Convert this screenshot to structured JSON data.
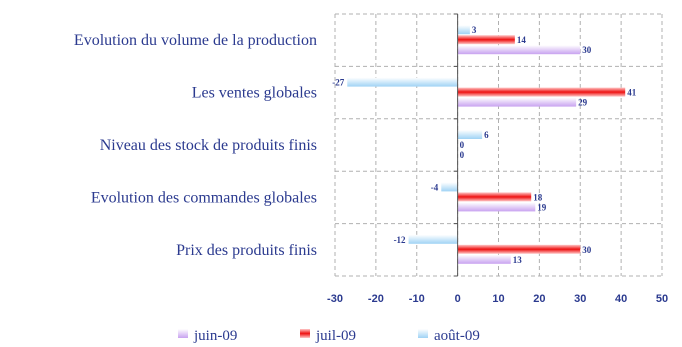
{
  "chart_data": {
    "type": "bar",
    "orientation": "horizontal",
    "categories": [
      "Evolution du volume de la production",
      "Les ventes globales",
      "Niveau des stock de produits finis",
      "Evolution des commandes globales",
      "Prix des produits finis"
    ],
    "series": [
      {
        "name": "juin-09",
        "values": [
          30,
          29,
          0,
          19,
          13
        ],
        "color": "#c8a2f0"
      },
      {
        "name": "juil-09",
        "values": [
          14,
          41,
          0,
          18,
          30
        ],
        "color": "#ee1111"
      },
      {
        "name": "août-09",
        "values": [
          3,
          -27,
          6,
          -4,
          -12
        ],
        "color": "#9fd3f5"
      }
    ],
    "xlim": [
      -30,
      50
    ],
    "xticks": [
      -30,
      -20,
      -10,
      0,
      10,
      20,
      30,
      40,
      50
    ],
    "grid": true,
    "legend_position": "bottom",
    "title": "",
    "xlabel": "",
    "ylabel": ""
  }
}
